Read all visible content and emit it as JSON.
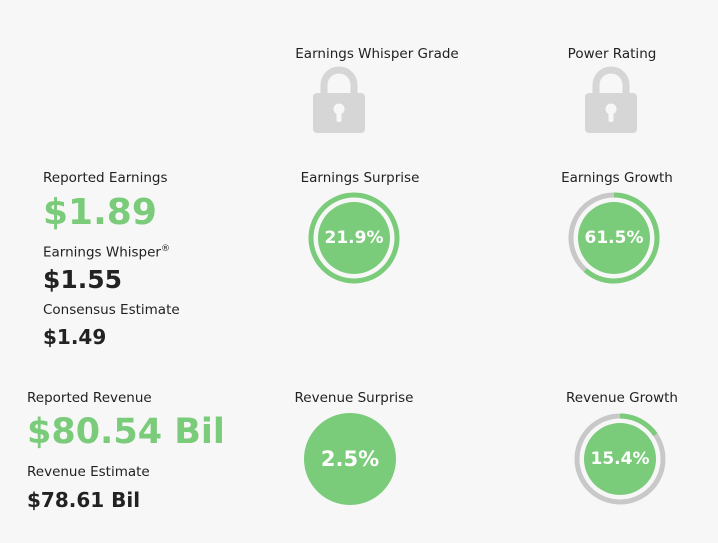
{
  "colors": {
    "green": "#7acb7a",
    "gray_ring": "#c8c8c8",
    "lock": "#d6d6d6"
  },
  "grade": {
    "label": "Earnings Whisper Grade",
    "icon": "lock-icon"
  },
  "power": {
    "label": "Power Rating",
    "icon": "lock-icon"
  },
  "earnings": {
    "reported_label": "Reported Earnings",
    "reported_value": "$1.89",
    "whisper_label": "Earnings Whisper",
    "whisper_mark": "®",
    "whisper_value": "$1.55",
    "consensus_label": "Consensus Estimate",
    "consensus_value": "$1.49",
    "surprise_label": "Earnings Surprise",
    "surprise_value": "21.9%",
    "surprise_pct": 21.9,
    "growth_label": "Earnings Growth",
    "growth_value": "61.5%",
    "growth_pct": 61.5
  },
  "revenue": {
    "reported_label": "Reported Revenue",
    "reported_value": "$80.54 Bil",
    "estimate_label": "Revenue Estimate",
    "estimate_value": "$78.61 Bil",
    "surprise_label": "Revenue Surprise",
    "surprise_value": "2.5%",
    "growth_label": "Revenue Growth",
    "growth_value": "15.4%",
    "growth_pct": 15.4
  }
}
